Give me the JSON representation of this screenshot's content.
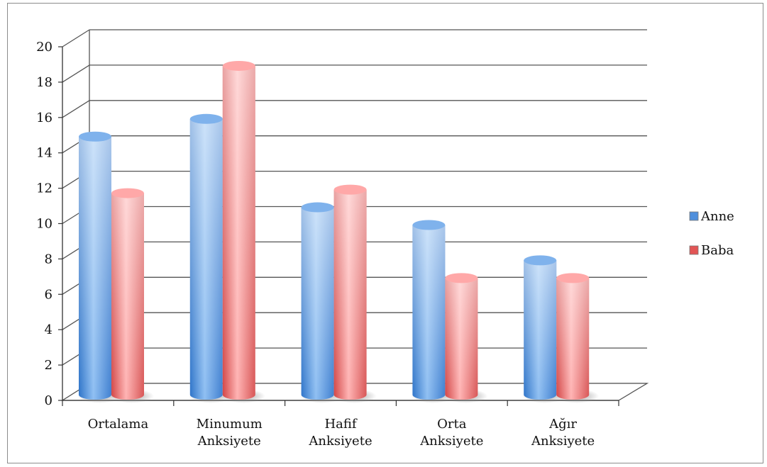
{
  "chart_data": {
    "type": "bar",
    "categories": [
      [
        "Ortalama"
      ],
      [
        "Minumum",
        "Anksiyete"
      ],
      [
        "Hafif",
        "Anksiyete"
      ],
      [
        "Orta",
        "Anksiyete"
      ],
      [
        "Ağır",
        "Anksiyete"
      ]
    ],
    "series": [
      {
        "name": "Anne",
        "values": [
          15,
          16,
          11,
          10,
          8
        ],
        "color": "#5b9bd5"
      },
      {
        "name": "Baba",
        "values": [
          11.8,
          19,
          12,
          7,
          7
        ],
        "color": "#e05b5b"
      }
    ],
    "y_ticks": [
      "0",
      "2",
      "4",
      "6",
      "8",
      "10",
      "12",
      "14",
      "16",
      "18",
      "20"
    ],
    "ylim": [
      0,
      20
    ],
    "grid": true,
    "legend": "right",
    "style": "3d-cylinder"
  }
}
